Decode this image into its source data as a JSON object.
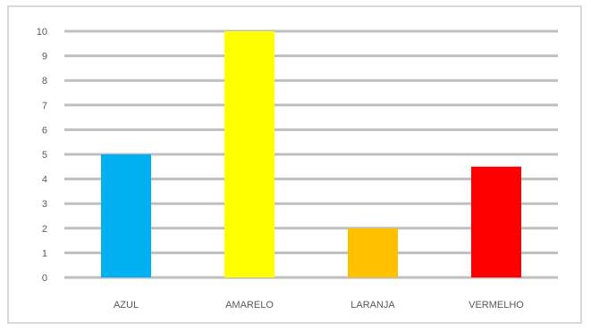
{
  "chart_data": {
    "type": "bar",
    "categories": [
      "AZUL",
      "AMARELO",
      "LARANJA",
      "VERMELHO"
    ],
    "values": [
      5,
      10,
      2,
      4.5
    ],
    "colors": [
      "#00b0f0",
      "#ffff00",
      "#ffc000",
      "#ff0000"
    ],
    "y_ticks": [
      "0",
      "1",
      "2",
      "3",
      "4",
      "5",
      "6",
      "7",
      "8",
      "9",
      "10"
    ],
    "ylim": [
      0,
      10
    ],
    "grid": true,
    "legend": "none"
  }
}
